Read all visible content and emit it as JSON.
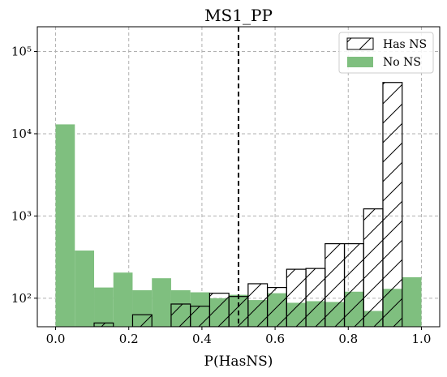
{
  "chart_data": {
    "type": "bar",
    "title": "MS1_PP",
    "xlabel": "P(HasNS)",
    "ylabel": "",
    "y_scale": "log",
    "xlim": [
      -0.05,
      1.05
    ],
    "ylim": [
      45,
      200000
    ],
    "grid": true,
    "legend_position": "top-right",
    "x_ticks": [
      0.0,
      0.2,
      0.4,
      0.6,
      0.8,
      1.0
    ],
    "x_tick_labels": [
      "0.0",
      "0.2",
      "0.4",
      "0.6",
      "0.8",
      "1.0"
    ],
    "y_ticks": [
      100,
      1000,
      10000,
      100000
    ],
    "y_tick_labels": [
      "10²",
      "10³",
      "10⁴",
      "10⁵"
    ],
    "bin_edges": [
      0.0,
      0.0526,
      0.1053,
      0.1579,
      0.2105,
      0.2632,
      0.3158,
      0.3684,
      0.4211,
      0.4737,
      0.5263,
      0.5789,
      0.6316,
      0.6842,
      0.7368,
      0.7895,
      0.8421,
      0.8947,
      0.9474,
      1.0
    ],
    "threshold_line": 0.5,
    "series": [
      {
        "name": "No NS",
        "color": "#7fbf7f",
        "style": "filled",
        "values": [
          13000,
          380,
          135,
          205,
          125,
          175,
          125,
          118,
          100,
          110,
          95,
          115,
          88,
          92,
          90,
          120,
          70,
          130,
          180
        ]
      },
      {
        "name": "Has NS",
        "color": "#000000",
        "style": "hatched",
        "values": [
          0,
          0,
          50,
          0,
          63,
          0,
          85,
          80,
          115,
          105,
          150,
          135,
          225,
          230,
          460,
          460,
          1220,
          42000,
          0
        ]
      }
    ]
  }
}
